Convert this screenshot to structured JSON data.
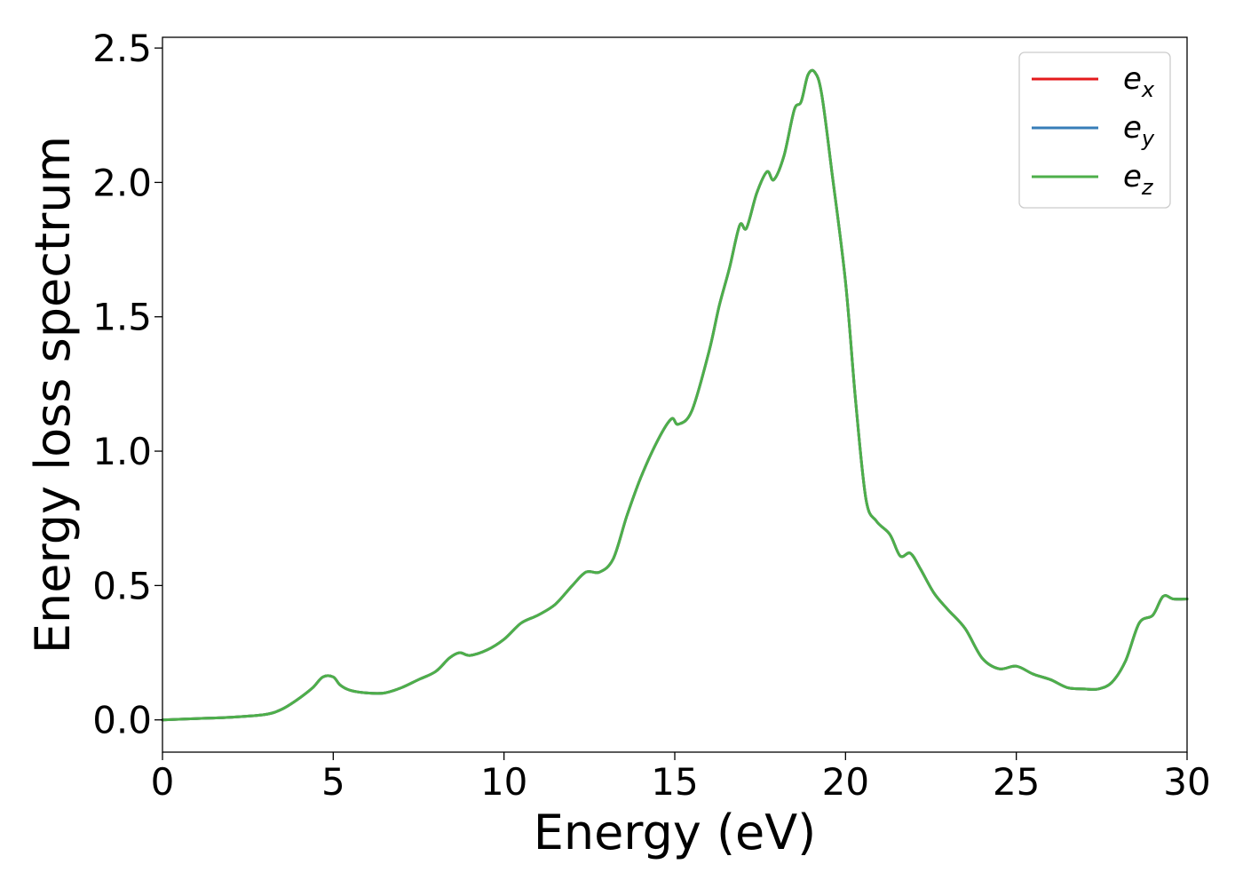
{
  "chart_data": {
    "type": "line",
    "title": "",
    "xlabel": "Energy (eV)",
    "ylabel": "Energy loss spectrum",
    "xlim": [
      0,
      30
    ],
    "ylim": [
      -0.12,
      2.54
    ],
    "xticks": [
      0,
      5,
      10,
      15,
      20,
      25,
      30
    ],
    "yticks": [
      0.0,
      0.5,
      1.0,
      1.5,
      2.0,
      2.5
    ],
    "xtick_labels": [
      "0",
      "5",
      "10",
      "15",
      "20",
      "25",
      "30"
    ],
    "ytick_labels": [
      "0.0",
      "0.5",
      "1.0",
      "1.5",
      "2.0",
      "2.5"
    ],
    "grid": false,
    "legend_position": "top-right",
    "x": [
      0,
      1,
      2,
      3,
      3.5,
      4,
      4.4,
      4.7,
      5.0,
      5.2,
      5.5,
      6,
      6.5,
      7,
      7.5,
      8,
      8.4,
      8.7,
      9.0,
      9.5,
      10,
      10.5,
      11,
      11.5,
      12,
      12.4,
      12.8,
      13.2,
      13.6,
      14,
      14.5,
      14.9,
      15.1,
      15.5,
      16,
      16.3,
      16.6,
      16.9,
      17.1,
      17.4,
      17.7,
      17.9,
      18.2,
      18.5,
      18.7,
      18.9,
      19.1,
      19.3,
      19.6,
      20,
      20.3,
      20.6,
      20.9,
      21.3,
      21.6,
      21.9,
      22.2,
      22.6,
      23,
      23.5,
      24,
      24.5,
      25,
      25.5,
      26,
      26.5,
      27,
      27.4,
      27.8,
      28.2,
      28.6,
      29,
      29.3,
      29.6,
      30
    ],
    "series": [
      {
        "name": "e_x",
        "label_base": "e",
        "label_sub": "x",
        "color": "#e41a1c",
        "values": [
          0.0,
          0.005,
          0.01,
          0.02,
          0.04,
          0.08,
          0.12,
          0.16,
          0.16,
          0.13,
          0.11,
          0.1,
          0.1,
          0.12,
          0.15,
          0.18,
          0.23,
          0.25,
          0.24,
          0.26,
          0.3,
          0.36,
          0.39,
          0.43,
          0.5,
          0.55,
          0.55,
          0.6,
          0.76,
          0.9,
          1.04,
          1.12,
          1.1,
          1.15,
          1.37,
          1.54,
          1.68,
          1.84,
          1.83,
          1.96,
          2.04,
          2.01,
          2.1,
          2.27,
          2.3,
          2.4,
          2.41,
          2.33,
          2.04,
          1.63,
          1.18,
          0.82,
          0.74,
          0.69,
          0.61,
          0.62,
          0.56,
          0.47,
          0.41,
          0.34,
          0.23,
          0.19,
          0.2,
          0.17,
          0.15,
          0.12,
          0.115,
          0.115,
          0.14,
          0.22,
          0.36,
          0.39,
          0.46,
          0.45,
          0.45
        ]
      },
      {
        "name": "e_y",
        "label_base": "e",
        "label_sub": "y",
        "color": "#377eb8",
        "values": [
          0.0,
          0.005,
          0.01,
          0.02,
          0.04,
          0.08,
          0.12,
          0.16,
          0.16,
          0.13,
          0.11,
          0.1,
          0.1,
          0.12,
          0.15,
          0.18,
          0.23,
          0.25,
          0.24,
          0.26,
          0.3,
          0.36,
          0.39,
          0.43,
          0.5,
          0.55,
          0.55,
          0.6,
          0.76,
          0.9,
          1.04,
          1.12,
          1.1,
          1.15,
          1.37,
          1.54,
          1.68,
          1.84,
          1.83,
          1.96,
          2.04,
          2.01,
          2.1,
          2.27,
          2.3,
          2.4,
          2.41,
          2.33,
          2.04,
          1.63,
          1.18,
          0.82,
          0.74,
          0.69,
          0.61,
          0.62,
          0.56,
          0.47,
          0.41,
          0.34,
          0.23,
          0.19,
          0.2,
          0.17,
          0.15,
          0.12,
          0.115,
          0.115,
          0.14,
          0.22,
          0.36,
          0.39,
          0.46,
          0.45,
          0.45
        ]
      },
      {
        "name": "e_z",
        "label_base": "e",
        "label_sub": "z",
        "color": "#4daf4a",
        "values": [
          0.0,
          0.005,
          0.01,
          0.02,
          0.04,
          0.08,
          0.12,
          0.16,
          0.16,
          0.13,
          0.11,
          0.1,
          0.1,
          0.12,
          0.15,
          0.18,
          0.23,
          0.25,
          0.24,
          0.26,
          0.3,
          0.36,
          0.39,
          0.43,
          0.5,
          0.55,
          0.55,
          0.6,
          0.76,
          0.9,
          1.04,
          1.12,
          1.1,
          1.15,
          1.37,
          1.54,
          1.68,
          1.84,
          1.83,
          1.96,
          2.04,
          2.01,
          2.1,
          2.27,
          2.3,
          2.4,
          2.41,
          2.33,
          2.04,
          1.63,
          1.18,
          0.82,
          0.74,
          0.69,
          0.61,
          0.62,
          0.56,
          0.47,
          0.41,
          0.34,
          0.23,
          0.19,
          0.2,
          0.17,
          0.15,
          0.12,
          0.115,
          0.115,
          0.14,
          0.22,
          0.36,
          0.39,
          0.46,
          0.45,
          0.45
        ]
      }
    ]
  }
}
